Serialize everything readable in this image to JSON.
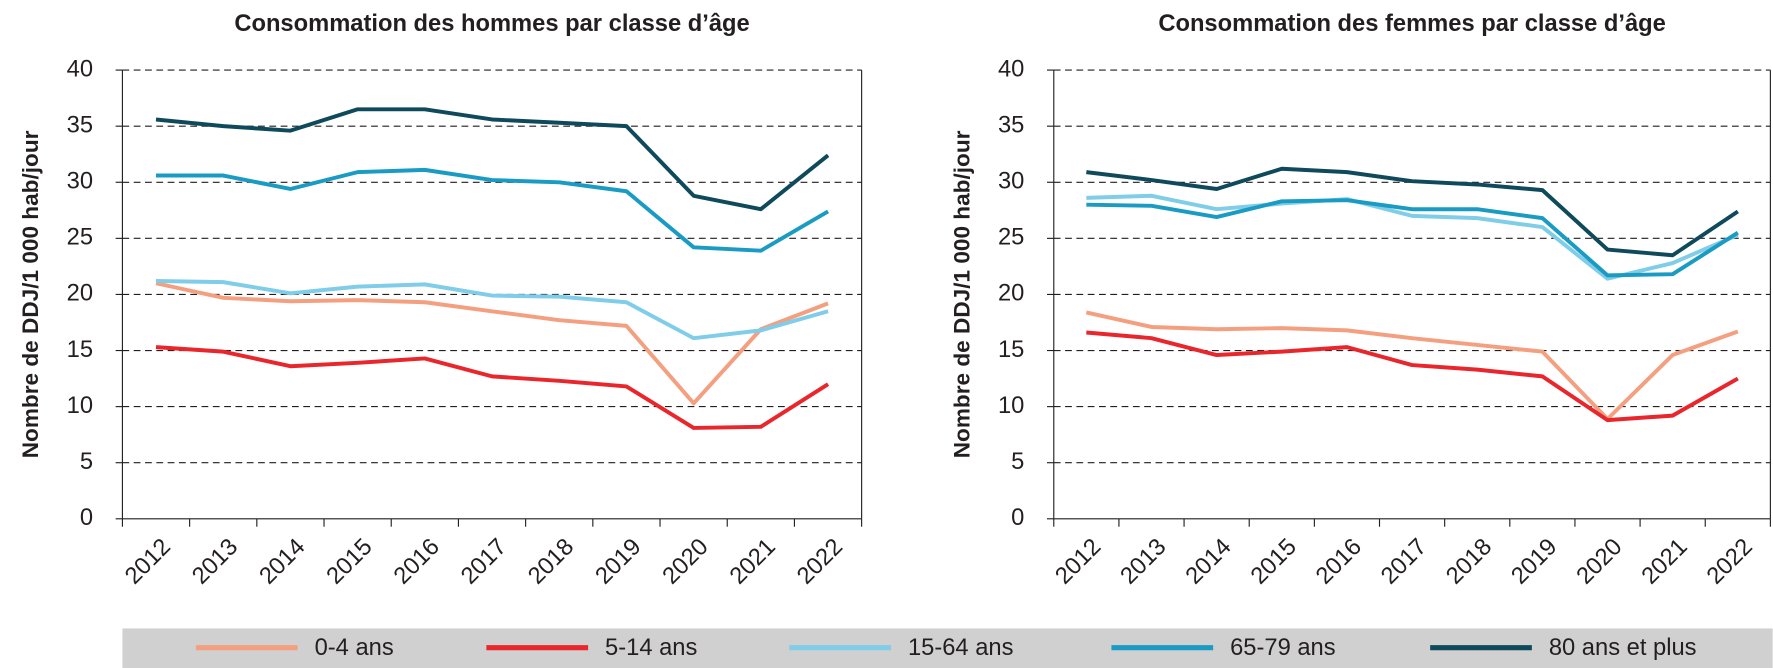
{
  "chart_data": [
    {
      "type": "line",
      "title": "Consommation des hommes par classe d’âge",
      "y_label": "Nombre de DDJ/1 000 hab/jour",
      "categories": [
        "2012",
        "2013",
        "2014",
        "2015",
        "2016",
        "2017",
        "2018",
        "2019",
        "2020",
        "2021",
        "2022"
      ],
      "ylim": [
        0,
        40
      ],
      "yticks": [
        0,
        5,
        10,
        15,
        20,
        25,
        30,
        35,
        40
      ],
      "grid": true,
      "series": [
        {
          "name": "0-4 ans",
          "color": "#f4a080",
          "values": [
            21.0,
            19.7,
            19.4,
            19.5,
            19.3,
            18.5,
            17.7,
            17.2,
            10.3,
            16.9,
            19.2
          ]
        },
        {
          "name": "5-14 ans",
          "color": "#e8262c",
          "values": [
            15.3,
            14.9,
            13.6,
            13.9,
            14.3,
            12.7,
            12.3,
            11.8,
            8.1,
            8.2,
            12.0
          ]
        },
        {
          "name": "15-64 ans",
          "color": "#7fcde8",
          "values": [
            21.2,
            21.1,
            20.1,
            20.7,
            20.9,
            19.9,
            19.8,
            19.3,
            16.1,
            16.8,
            18.5
          ]
        },
        {
          "name": "65-79 ans",
          "color": "#1a9bc4",
          "values": [
            30.6,
            30.6,
            29.4,
            30.9,
            31.1,
            30.2,
            30.0,
            29.2,
            24.2,
            23.9,
            27.4
          ]
        },
        {
          "name": "80 ans et plus",
          "color": "#0f4a5c",
          "values": [
            35.6,
            35.0,
            34.6,
            36.5,
            36.5,
            35.6,
            35.3,
            35.0,
            28.8,
            27.6,
            32.4
          ]
        }
      ]
    },
    {
      "type": "line",
      "title": "Consommation des femmes par classe d’âge",
      "y_label": "Nombre de DDJ/1 000 hab/jour",
      "categories": [
        "2012",
        "2013",
        "2014",
        "2015",
        "2016",
        "2017",
        "2018",
        "2019",
        "2020",
        "2021",
        "2022"
      ],
      "ylim": [
        0,
        40
      ],
      "yticks": [
        0,
        5,
        10,
        15,
        20,
        25,
        30,
        35,
        40
      ],
      "grid": true,
      "series": [
        {
          "color": "#f4a080",
          "values": [
            18.4,
            17.1,
            16.9,
            17.0,
            16.8,
            16.1,
            15.5,
            14.9,
            8.9,
            14.6,
            16.7
          ]
        },
        {
          "color": "#e8262c",
          "values": [
            16.6,
            16.1,
            14.6,
            14.9,
            15.3,
            13.7,
            13.3,
            12.7,
            8.8,
            9.2,
            12.5
          ]
        },
        {
          "color": "#7fcde8",
          "values": [
            28.6,
            28.8,
            27.6,
            28.1,
            28.5,
            27.0,
            26.8,
            26.0,
            21.4,
            22.8,
            25.3
          ]
        },
        {
          "color": "#1a9bc4",
          "values": [
            28.0,
            27.9,
            26.9,
            28.3,
            28.4,
            27.6,
            27.6,
            26.8,
            21.7,
            21.8,
            25.5
          ]
        },
        {
          "color": "#0f4a5c",
          "values": [
            30.9,
            30.2,
            29.4,
            31.2,
            30.9,
            30.1,
            29.8,
            29.3,
            24.0,
            23.5,
            27.4
          ]
        }
      ]
    }
  ]
}
